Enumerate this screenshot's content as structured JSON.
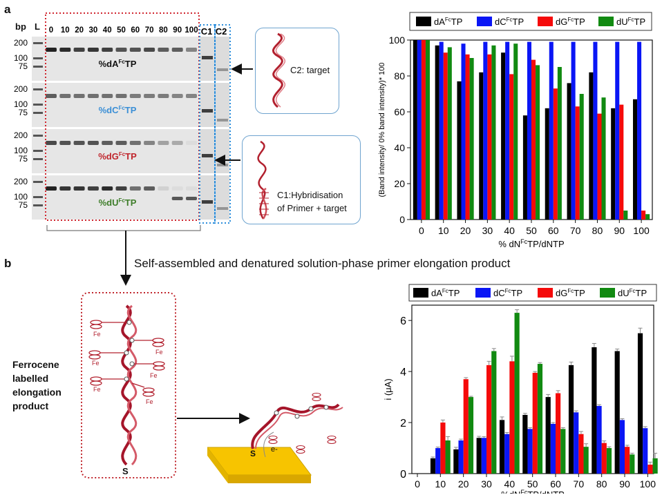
{
  "figure": {
    "panel_a": "a",
    "panel_b": "b",
    "bp_label": "bp",
    "ladder_label": "L",
    "lanes": [
      "0",
      "10",
      "20",
      "30",
      "40",
      "50",
      "60",
      "70",
      "80",
      "90",
      "100"
    ],
    "c1": "C1",
    "c2": "C2",
    "ladder_ticks": [
      "200",
      "100",
      "75"
    ],
    "gel_labels": [
      {
        "prefix": "%dA",
        "sup": "Fc",
        "suffix": "TP",
        "color": "#111111"
      },
      {
        "prefix": "%dC",
        "sup": "Fc",
        "suffix": "TP",
        "color": "#3b8fd6"
      },
      {
        "prefix": "%dG",
        "sup": "Fc",
        "suffix": "TP",
        "color": "#c0262d"
      },
      {
        "prefix": "%dU",
        "sup": "Fc",
        "suffix": "TP",
        "color": "#3e7d2a"
      }
    ],
    "callout_c2": "C2: target",
    "callout_c1_line1": "C1:Hybridisation",
    "callout_c1_line2": "of Primer + target",
    "caption_b": "Self-assembled and denatured  solution-phase primer elongation product",
    "ferrocene_line1": "Ferrocene",
    "ferrocene_line2": "labelled",
    "ferrocene_line3": "elongation",
    "ferrocene_line4": "product",
    "fe_label": "Fe",
    "s_label": "S",
    "e_label": "e-"
  },
  "chart_data": [
    {
      "type": "bar",
      "categories": [
        "0",
        "10",
        "20",
        "30",
        "40",
        "50",
        "60",
        "70",
        "80",
        "90",
        "100"
      ],
      "series": [
        {
          "name": "dA",
          "sup": "Fc",
          "suffix": "TP",
          "color": "#000000",
          "values": [
            100,
            97,
            77,
            82,
            93,
            58,
            62,
            76,
            82,
            62,
            67
          ]
        },
        {
          "name": "dC",
          "sup": "Fc",
          "suffix": "TP",
          "color": "#0a16f5",
          "values": [
            100,
            99,
            98,
            99,
            99,
            99,
            99,
            99,
            99,
            99,
            99
          ]
        },
        {
          "name": "dG",
          "sup": "Fc",
          "suffix": "TP",
          "color": "#f50a0a",
          "values": [
            100,
            93,
            92,
            92,
            81,
            89,
            73,
            63,
            59,
            64,
            5
          ]
        },
        {
          "name": "dU",
          "sup": "Fc",
          "suffix": "TP",
          "color": "#118a11",
          "values": [
            100,
            96,
            90,
            97,
            98,
            86,
            85,
            70,
            68,
            5,
            3
          ]
        }
      ],
      "ylim": [
        0,
        100
      ],
      "yticks": [
        "0",
        "20",
        "40",
        "60",
        "80",
        "100"
      ],
      "ylabel": "(Band intensity/ 0% band intensity)* 100",
      "xlabel_prefix": "% dN",
      "xlabel_sup": "Fc",
      "xlabel_suffix": "TP/dNTP",
      "legend": "top"
    },
    {
      "type": "bar",
      "categories": [
        "10",
        "20",
        "30",
        "40",
        "50",
        "60",
        "70",
        "80",
        "90",
        "100"
      ],
      "series": [
        {
          "name": "dA",
          "sup": "Fc",
          "suffix": "TP",
          "color": "#000000",
          "values": [
            0.6,
            0.95,
            1.4,
            2.1,
            2.3,
            3.0,
            4.25,
            4.95,
            4.8,
            5.5
          ],
          "err": [
            0.05,
            0.08,
            0.06,
            0.12,
            0.06,
            0.1,
            0.12,
            0.15,
            0.08,
            0.2
          ]
        },
        {
          "name": "dC",
          "sup": "Fc",
          "suffix": "TP",
          "color": "#0a16f5",
          "values": [
            1.0,
            1.3,
            1.4,
            1.55,
            1.75,
            1.95,
            2.4,
            2.65,
            2.1,
            1.78
          ],
          "err": [
            0.04,
            0.05,
            0.05,
            0.06,
            0.05,
            0.05,
            0.06,
            0.05,
            0.05,
            0.06
          ]
        },
        {
          "name": "dG",
          "sup": "Fc",
          "suffix": "TP",
          "color": "#f50a0a",
          "values": [
            2.0,
            3.7,
            4.25,
            4.4,
            3.95,
            3.15,
            1.55,
            1.2,
            1.05,
            0.35
          ],
          "err": [
            0.1,
            0.06,
            0.15,
            0.2,
            0.05,
            0.1,
            0.1,
            0.08,
            0.06,
            0.1
          ]
        },
        {
          "name": "dU",
          "sup": "Fc",
          "suffix": "TP",
          "color": "#118a11",
          "values": [
            1.3,
            3.0,
            4.8,
            6.3,
            4.3,
            1.75,
            1.05,
            1.0,
            0.75,
            0.6
          ],
          "err": [
            0.15,
            0.03,
            0.1,
            0.12,
            0.05,
            0.05,
            0.12,
            0.05,
            0.05,
            0.2
          ]
        }
      ],
      "ylim": [
        0,
        6.6
      ],
      "yticks": [
        "0",
        "2",
        "4",
        "6"
      ],
      "xticks": [
        "0",
        "10",
        "20",
        "30",
        "40",
        "50",
        "60",
        "70",
        "80",
        "90",
        "100"
      ],
      "ylabel_prefix": "i (",
      "ylabel_mu": "μ",
      "ylabel_suffix": "A)",
      "xlabel_prefix": "%dN",
      "xlabel_sup": "Fc",
      "xlabel_suffix": "TP/dNTP",
      "legend": "top"
    }
  ]
}
